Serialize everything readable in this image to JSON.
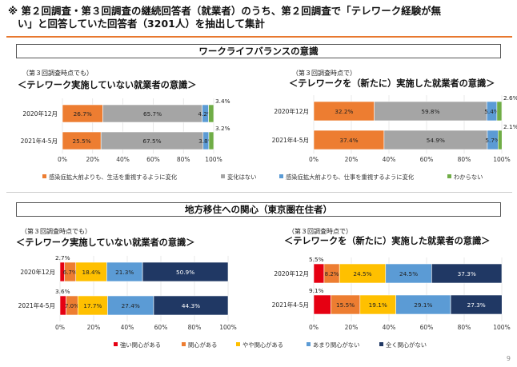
{
  "page": {
    "title_line1": "※ 第２回調査・第３回調査の継続回答者（就業者）のうち、第２回調査で「テレワーク経験が無",
    "title_line2": "い」と回答していた回答者（3201人）を抽出して集計",
    "page_number": "9"
  },
  "sections": [
    "ワークライフバランスの意識",
    "地方移住への関心（東京圏在住者）"
  ],
  "chart_data": [
    {
      "type": "bar",
      "orientation": "horizontal-stacked-100",
      "subtitle": "（第３回調査時点でも）",
      "title": "＜テレワーク実施していない就業者の意識＞",
      "categories": [
        "2020年12月",
        "2021年4-5月"
      ],
      "series": [
        {
          "name": "感染症拡大前よりも、生活を重視するように変化",
          "values": [
            26.7,
            25.5
          ],
          "color": "#ed7d31"
        },
        {
          "name": "変化はない",
          "values": [
            65.7,
            67.5
          ],
          "color": "#a5a5a5"
        },
        {
          "name": "感染症拡大前よりも、仕事を重視するように変化",
          "values": [
            4.2,
            3.8
          ],
          "color": "#5b9bd5"
        },
        {
          "name": "わからない",
          "values": [
            3.4,
            3.2
          ],
          "color": "#70ad47"
        }
      ],
      "xlim": [
        0,
        100
      ],
      "xticks": [
        "0%",
        "20%",
        "40%",
        "60%",
        "80%",
        "100%"
      ]
    },
    {
      "type": "bar",
      "orientation": "horizontal-stacked-100",
      "subtitle": "（第３回調査時点で）",
      "title": "＜テレワークを（新たに）実施した就業者の意識＞",
      "categories": [
        "2020年12月",
        "2021年4-5月"
      ],
      "series": [
        {
          "name": "感染症拡大前よりも、生活を重視するように変化",
          "values": [
            32.2,
            37.4
          ],
          "color": "#ed7d31"
        },
        {
          "name": "変化はない",
          "values": [
            59.8,
            54.9
          ],
          "color": "#a5a5a5"
        },
        {
          "name": "感染症拡大前よりも、仕事を重視するように変化",
          "values": [
            5.4,
            5.7
          ],
          "color": "#5b9bd5"
        },
        {
          "name": "わからない",
          "values": [
            2.6,
            2.1
          ],
          "color": "#70ad47"
        }
      ],
      "xlim": [
        0,
        100
      ],
      "xticks": [
        "0%",
        "20%",
        "40%",
        "60%",
        "80%",
        "100%"
      ]
    },
    {
      "type": "bar",
      "orientation": "horizontal-stacked-100",
      "subtitle": "（第３回調査時点でも）",
      "title": "＜テレワーク実施していない就業者の意識＞",
      "categories": [
        "2020年12月",
        "2021年4-5月"
      ],
      "series": [
        {
          "name": "強い関心がある",
          "values": [
            2.7,
            3.6
          ],
          "color": "#e60012"
        },
        {
          "name": "関心がある",
          "values": [
            6.7,
            7.0
          ],
          "color": "#ed7d31"
        },
        {
          "name": "やや関心がある",
          "values": [
            18.4,
            17.7
          ],
          "color": "#ffc000"
        },
        {
          "name": "あまり関心がない",
          "values": [
            21.3,
            27.4
          ],
          "color": "#5b9bd5"
        },
        {
          "name": "全く関心がない",
          "values": [
            50.9,
            44.3
          ],
          "color": "#203864"
        }
      ],
      "xlim": [
        0,
        100
      ],
      "xticks": [
        "0%",
        "20%",
        "40%",
        "60%",
        "80%",
        "100%"
      ]
    },
    {
      "type": "bar",
      "orientation": "horizontal-stacked-100",
      "subtitle": "（第３回調査時点で）",
      "title": "＜テレワークを（新たに）実施した就業者の意識＞",
      "categories": [
        "2020年12月",
        "2021年4-5月"
      ],
      "series": [
        {
          "name": "強い関心がある",
          "values": [
            5.5,
            9.1
          ],
          "color": "#e60012"
        },
        {
          "name": "関心がある",
          "values": [
            8.2,
            15.5
          ],
          "color": "#ed7d31"
        },
        {
          "name": "やや関心がある",
          "values": [
            24.5,
            19.1
          ],
          "color": "#ffc000"
        },
        {
          "name": "あまり関心がない",
          "values": [
            24.5,
            29.1
          ],
          "color": "#5b9bd5"
        },
        {
          "name": "全く関心がない",
          "values": [
            37.3,
            27.3
          ],
          "color": "#203864"
        }
      ],
      "xlim": [
        0,
        100
      ],
      "xticks": [
        "0%",
        "20%",
        "40%",
        "60%",
        "80%",
        "100%"
      ]
    }
  ],
  "legends": [
    {
      "items": [
        "感染症拡大前よりも、生活を重視するように変化",
        "変化はない",
        "感染症拡大前よりも、仕事を重視するように変化",
        "わからない"
      ],
      "colors": [
        "#ed7d31",
        "#a5a5a5",
        "#5b9bd5",
        "#70ad47"
      ]
    },
    {
      "items": [
        "強い関心がある",
        "関心がある",
        "やや関心がある",
        "あまり関心がない",
        "全く関心がない"
      ],
      "colors": [
        "#e60012",
        "#ed7d31",
        "#ffc000",
        "#5b9bd5",
        "#203864"
      ]
    }
  ]
}
